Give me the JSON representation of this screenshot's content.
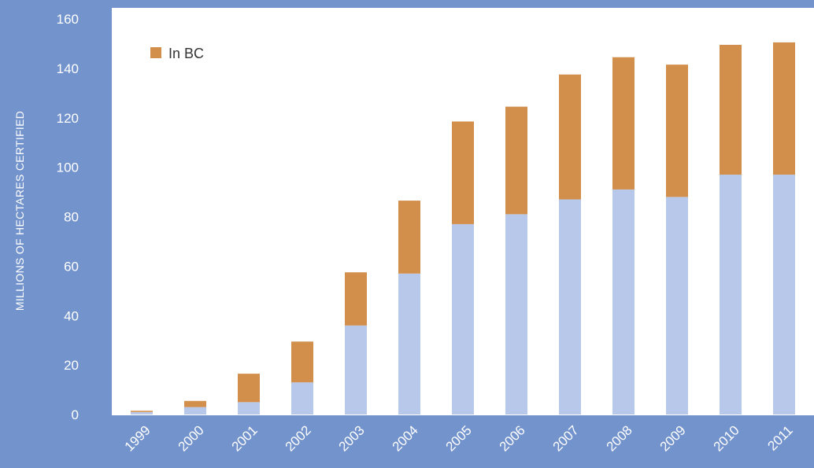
{
  "chart_data": {
    "type": "bar",
    "stacked": true,
    "title": "",
    "xlabel": "",
    "ylabel": "MILLIONS OF HECTARES CERTIFIED",
    "ylim": [
      0,
      160
    ],
    "yticks": [
      0,
      20,
      40,
      60,
      80,
      100,
      120,
      140,
      160
    ],
    "grid": false,
    "legend_position": "top-left",
    "categories": [
      "1999",
      "2000",
      "2001",
      "2002",
      "2003",
      "2004",
      "2005",
      "2006",
      "2007",
      "2008",
      "2009",
      "2010",
      "2011"
    ],
    "series": [
      {
        "color": "#b8c8ea",
        "values": [
          1,
          3,
          5,
          13,
          36,
          57,
          77,
          81,
          87,
          91,
          88,
          97,
          97
        ]
      },
      {
        "name": "In BC",
        "color": "#d28e4b",
        "values": [
          0.5,
          2.5,
          11.5,
          16.5,
          21.5,
          29.5,
          41.5,
          43.5,
          50.5,
          53.5,
          53.5,
          52.5,
          53.5
        ]
      }
    ]
  },
  "colors": {
    "background": "#7393cd",
    "plot_area": "#ffffff",
    "tick_text": "#ffffff"
  }
}
